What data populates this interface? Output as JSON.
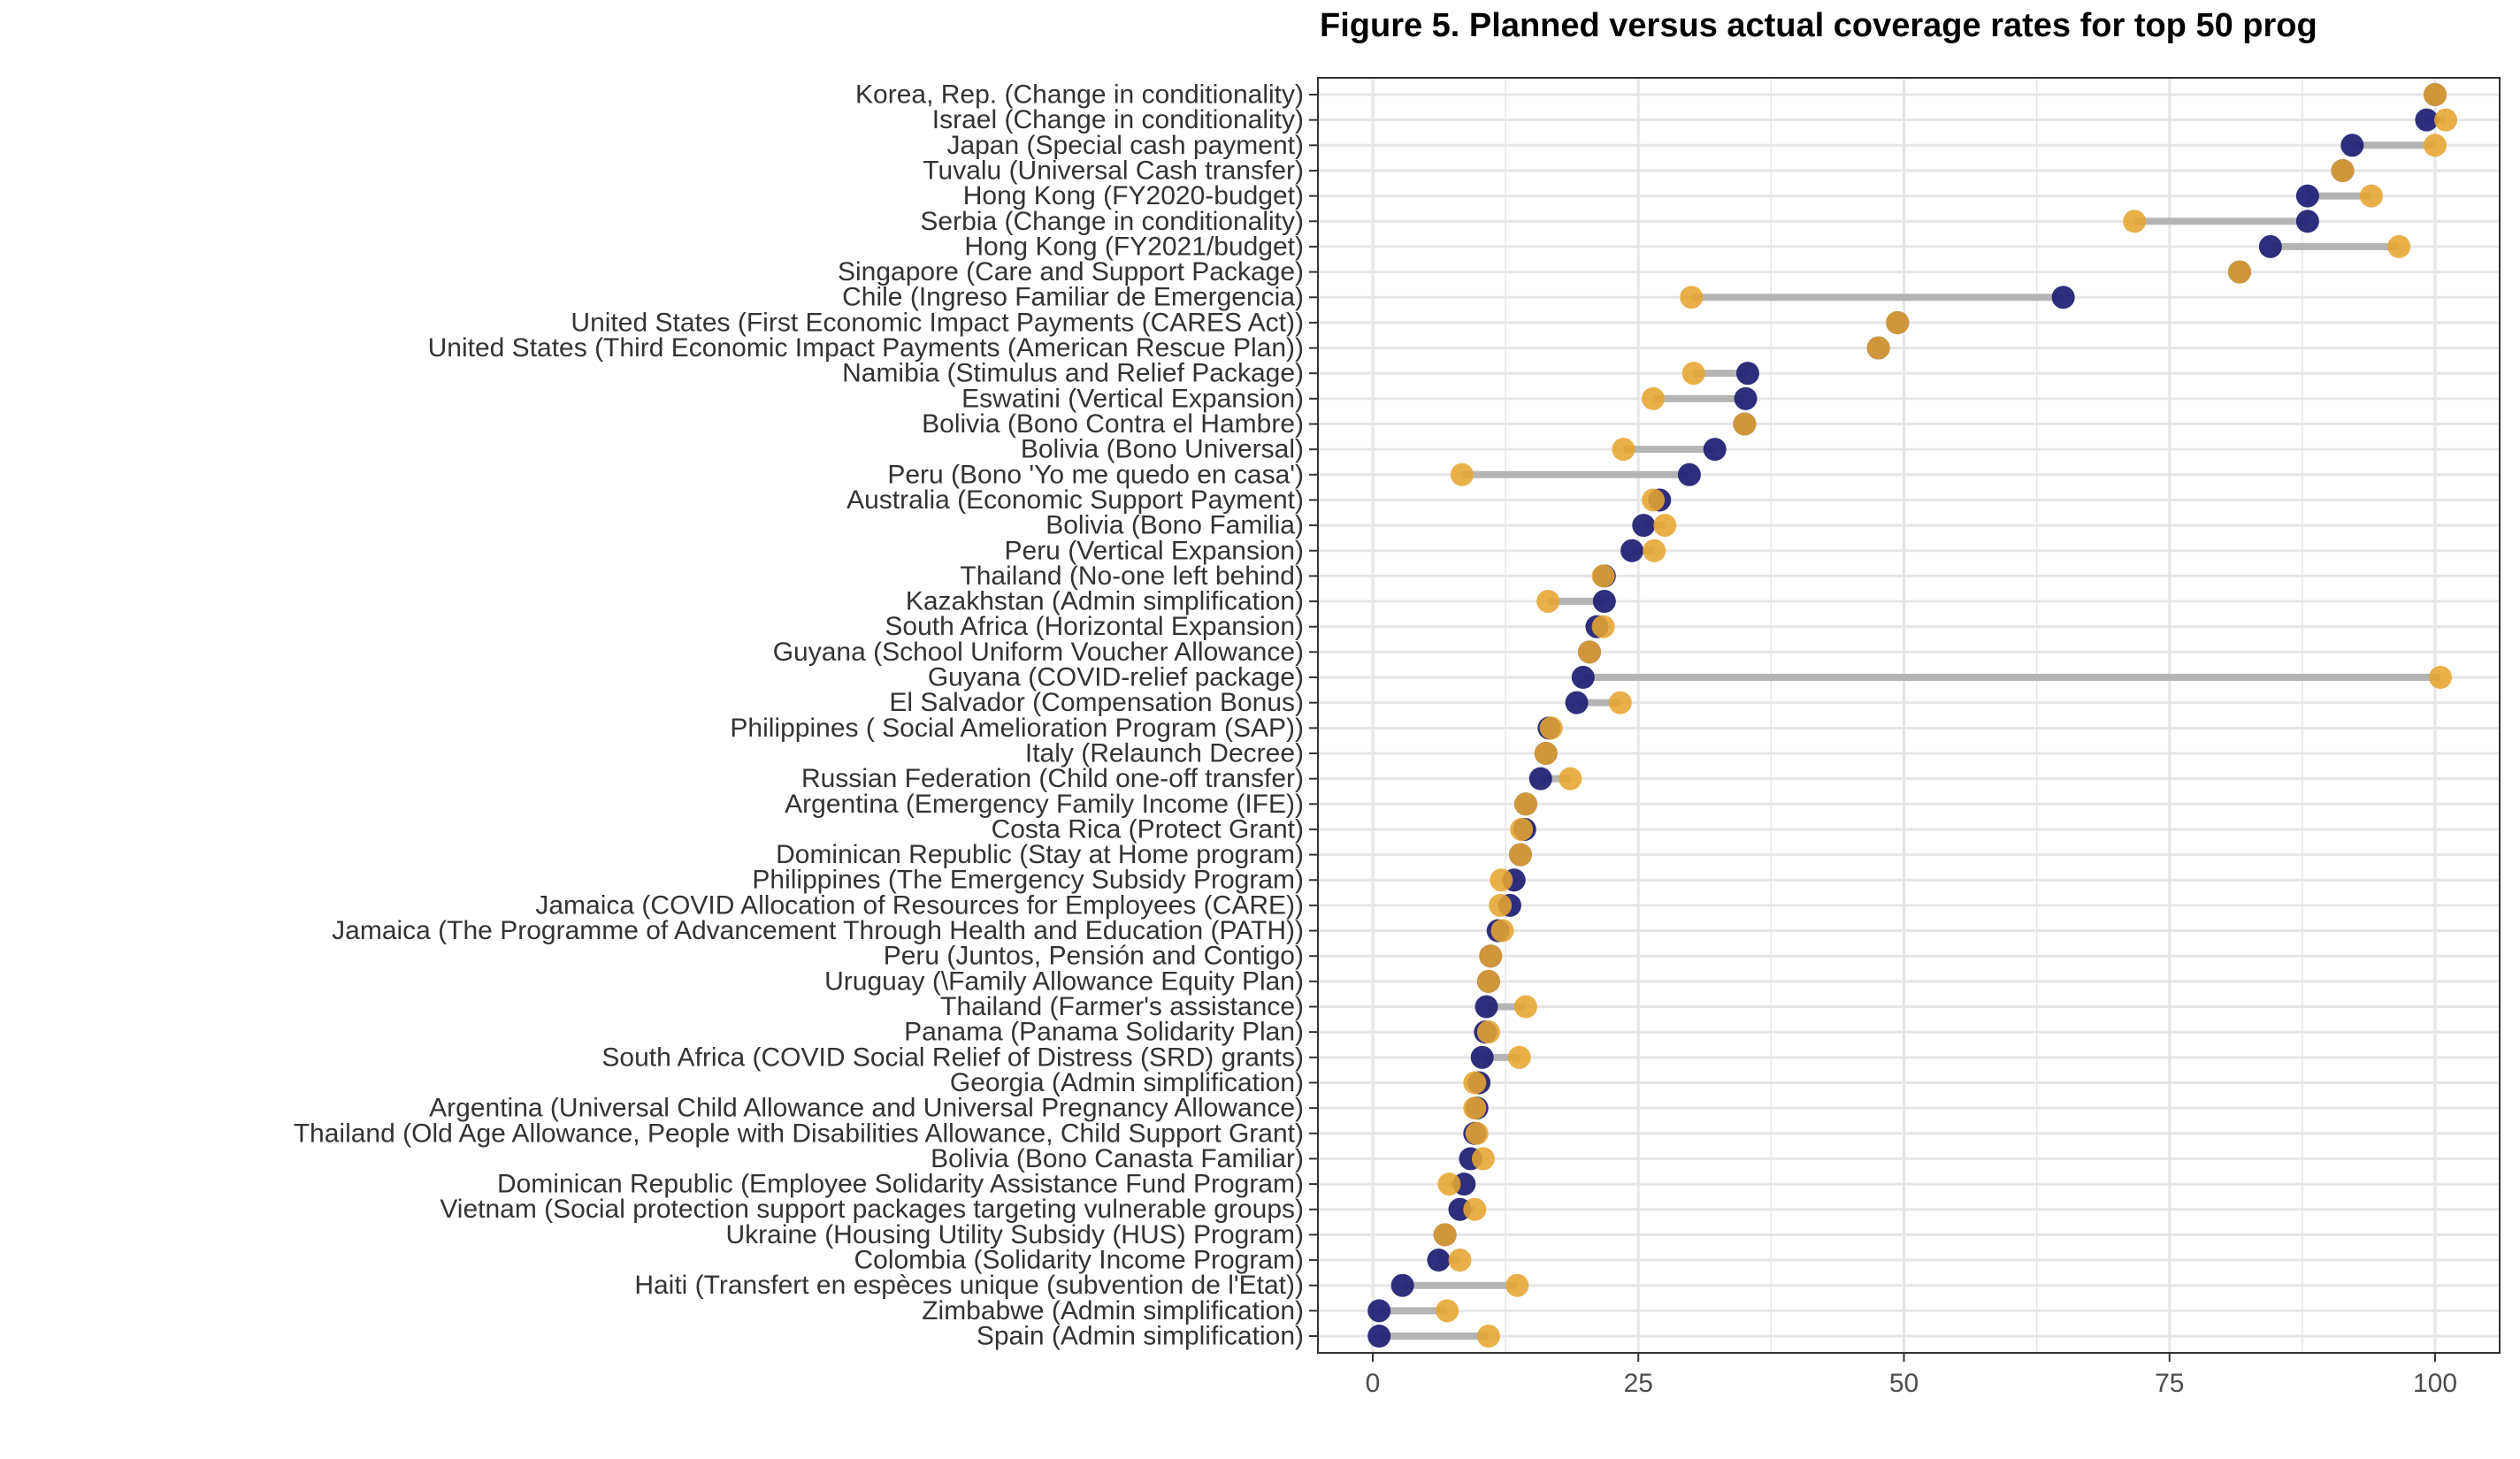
{
  "chart_data": {
    "type": "dumbbell",
    "title": "Figure 5. Planned versus actual coverage rates for top 50 prog",
    "xlim": [
      -5,
      106
    ],
    "xticks": [
      0,
      25,
      50,
      75,
      100
    ],
    "grid": true,
    "legend": "none",
    "colors": {
      "planned": "#e6a531",
      "actual": "#232375",
      "connector": "#b4b4b4",
      "grid": "#e6e6e6",
      "panel_border": "#333333"
    },
    "categories": [
      "Korea, Rep. (Change in conditionality)",
      "Israel (Change in conditionality)",
      "Japan (Special cash payment)",
      "Tuvalu (Universal Cash transfer)",
      "Hong Kong (FY2020-budget)",
      "Serbia (Change in conditionality)",
      "Hong Kong (FY2021/budget)",
      "Singapore (Care and Support Package)",
      "Chile (Ingreso Familiar de Emergencia)",
      "United States (First Economic Impact Payments (CARES Act))",
      "United States (Third Economic Impact Payments (American Rescue Plan))",
      "Namibia (Stimulus and Relief Package)",
      "Eswatini (Vertical Expansion)",
      "Bolivia (Bono Contra el Hambre)",
      "Bolivia (Bono Universal)",
      "Peru (Bono 'Yo me quedo en casa')",
      "Australia (Economic Support Payment)",
      "Bolivia (Bono Familia)",
      "Peru (Vertical Expansion)",
      "Thailand (No-one left behind)",
      "Kazakhstan (Admin simplification)",
      "South Africa (Horizontal Expansion)",
      "Guyana (School Uniform Voucher Allowance)",
      "Guyana (COVID-relief package)",
      "El Salvador (Compensation Bonus)",
      "Philippines ( Social Amelioration Program (SAP))",
      "Italy (Relaunch Decree)",
      "Russian Federation (Child one-off transfer)",
      "Argentina (Emergency Family Income (IFE))",
      "Costa Rica (Protect Grant)",
      "Dominican Republic (Stay at Home program)",
      "Philippines (The Emergency Subsidy Program)",
      "Jamaica (COVID Allocation of Resources for Employees (CARE))",
      "Jamaica (The Programme of Advancement Through Health and Education (PATH))",
      "Peru (Juntos, Pensión and Contigo)",
      "Uruguay (\\Family Allowance Equity Plan)",
      "Thailand (Farmer's assistance)",
      "Panama (Panama Solidarity Plan)",
      "South Africa (COVID Social Relief of Distress (SRD) grants)",
      "Georgia (Admin simplification)",
      "Argentina (Universal Child Allowance and Universal Pregnancy Allowance)",
      "Thailand (Old Age Allowance, People with Disabilities Allowance, Child Support Grant)",
      "Bolivia (Bono Canasta Familiar)",
      "Dominican Republic (Employee Solidarity Assistance Fund Program)",
      "Vietnam (Social protection support packages targeting vulnerable groups)",
      "Ukraine (Housing Utility Subsidy (HUS) Program)",
      "Colombia (Solidarity Income Program)",
      "Haiti (Transfert en espèces unique (subvention de l'Etat))",
      "Zimbabwe (Admin simplification)",
      "Spain (Admin simplification)"
    ],
    "series": [
      {
        "key": "actual",
        "values": [
          100.0,
          99.2,
          92.2,
          91.3,
          88.0,
          88.0,
          84.5,
          81.6,
          65.0,
          49.4,
          47.6,
          35.3,
          35.1,
          35.0,
          32.2,
          29.8,
          27.0,
          25.5,
          24.4,
          21.8,
          21.8,
          21.1,
          20.4,
          19.8,
          19.2,
          16.6,
          16.3,
          15.8,
          14.4,
          14.3,
          13.9,
          13.3,
          12.9,
          11.8,
          11.1,
          10.9,
          10.7,
          10.6,
          10.3,
          10.0,
          9.8,
          9.6,
          9.2,
          8.6,
          8.2,
          6.8,
          6.2,
          2.8,
          0.6,
          0.6
        ]
      },
      {
        "key": "planned",
        "values": [
          100.0,
          101.0,
          100.0,
          91.3,
          94.0,
          71.7,
          96.6,
          81.6,
          30.0,
          49.4,
          47.6,
          30.2,
          26.4,
          35.0,
          23.6,
          8.4,
          26.4,
          27.5,
          26.5,
          21.7,
          16.5,
          21.7,
          20.4,
          100.5,
          23.3,
          16.8,
          16.3,
          18.6,
          14.4,
          14.0,
          13.9,
          12.1,
          12.0,
          12.2,
          11.1,
          10.9,
          14.4,
          10.9,
          13.8,
          9.6,
          9.6,
          9.8,
          10.4,
          7.2,
          9.6,
          6.8,
          8.2,
          13.6,
          7.0,
          10.9
        ]
      }
    ]
  }
}
